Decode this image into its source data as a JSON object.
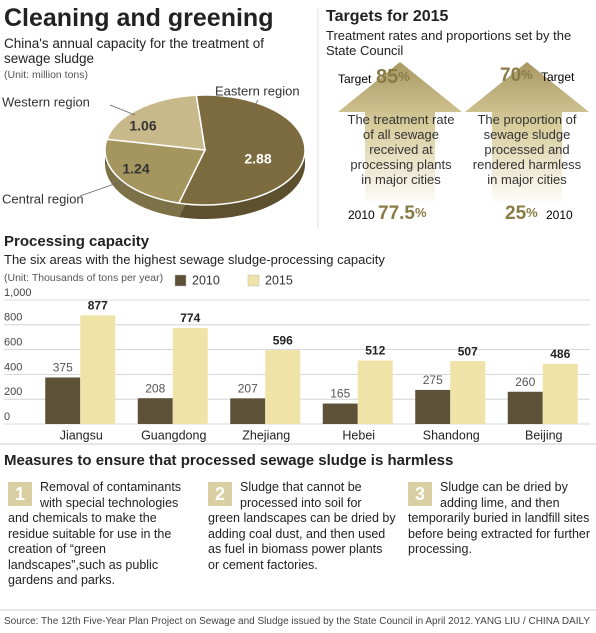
{
  "header": {
    "title": "Cleaning and greening"
  },
  "chart_data": [
    {
      "type": "pie",
      "title": "China's annual capacity for the treatment of sewage sludge",
      "note": "(Unit: million tons)",
      "categories": [
        "Eastern region",
        "Central region",
        "Western region"
      ],
      "values": [
        2.88,
        1.24,
        1.06
      ],
      "colors": [
        "#7b6b3e",
        "#a5965f",
        "#c8b98a"
      ]
    },
    {
      "type": "bar",
      "title": "Processing capacity",
      "subtitle": "The six areas with the highest sewage sludge-processing capacity",
      "note": "(Unit: Thousands of tons per year)",
      "categories": [
        "Jiangsu",
        "Guangdong",
        "Zhejiang",
        "Hebei",
        "Shandong",
        "Beijing"
      ],
      "series": [
        {
          "name": "2010",
          "color": "#5d5137",
          "values": [
            375,
            208,
            207,
            165,
            275,
            260
          ]
        },
        {
          "name": "2015",
          "color": "#f0e3a8",
          "values": [
            877,
            774,
            596,
            512,
            507,
            486
          ]
        }
      ],
      "ylim": [
        0,
        1000
      ],
      "yticks": [
        0,
        200,
        400,
        600,
        800,
        {
          "value": 1000,
          "label": "1,000"
        }
      ],
      "grid": true
    }
  ],
  "targets": {
    "title": "Targets for 2015",
    "subtitle": "Treatment rates and proportions set by the State Council",
    "items": [
      {
        "target_label": "Target",
        "target": 85,
        "unit": "%",
        "text": "The treatment rate of all sewage received at processing plants in major cities",
        "base_label": "2010",
        "base": 77.5,
        "base_unit": "%"
      },
      {
        "target_label": "Target",
        "target": 70,
        "unit": "%",
        "text": "The proportion of sewage sludge processed and rendered harmless in major cities",
        "base_label": "2010",
        "base": 25,
        "base_unit": "%"
      }
    ]
  },
  "measures": {
    "title": "Measures to ensure that processed sewage sludge is harmless",
    "items": [
      {
        "number": "1",
        "text": "Removal of contaminants with special technologies and chemicals to make the residue suitable for use in the creation of “green landscapes”,such as public gardens and parks."
      },
      {
        "number": "2",
        "text": "Sludge that cannot be processed into soil for green landscapes can be dried by adding coal dust, and then used as fuel in biomass power plants or cement factories."
      },
      {
        "number": "3",
        "text": "Sludge can be dried by adding lime, and then temporarily buried in landfill sites before being extracted for further processing."
      }
    ]
  },
  "footer": {
    "source": "Source: The 12th Five-Year Plan Project on Sewage and Sludge issued by the State Council in April 2012.",
    "credit": "YANG LIU / CHINA DAILY"
  }
}
